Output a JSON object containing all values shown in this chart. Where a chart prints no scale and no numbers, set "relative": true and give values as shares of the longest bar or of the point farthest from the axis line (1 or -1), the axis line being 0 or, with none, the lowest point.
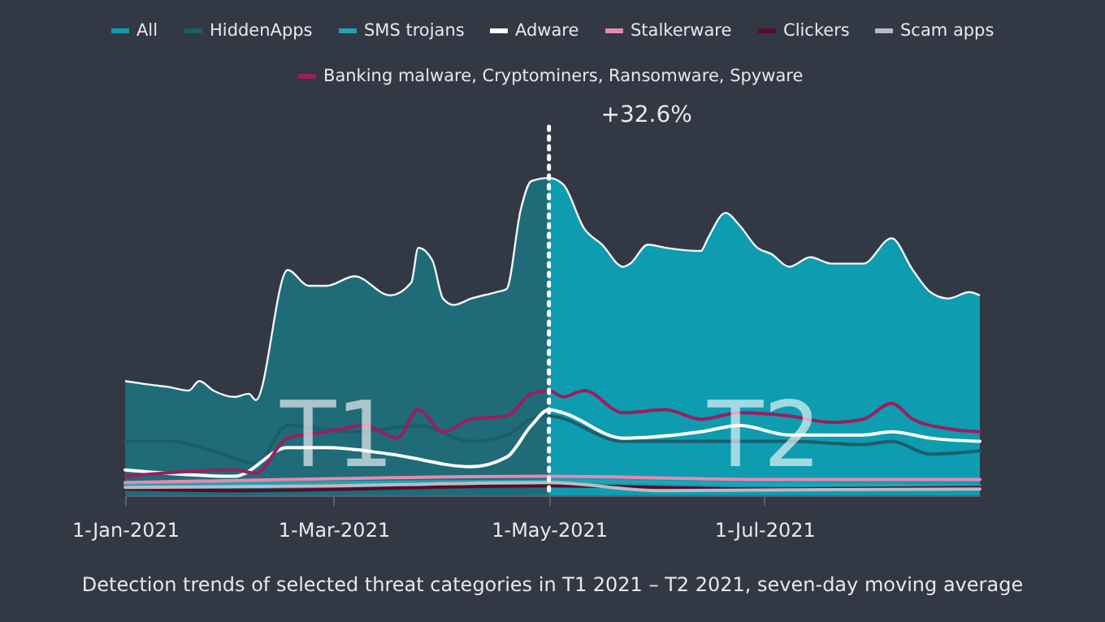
{
  "chart_data": {
    "type": "area",
    "relative": true,
    "xlim": [
      "2021-01-01",
      "2021-08-31"
    ],
    "xticks": [
      {
        "value": "2021-01-01",
        "label": "1-Jan-2021"
      },
      {
        "value": "2021-03-01",
        "label": "1-Mar-2021"
      },
      {
        "value": "2021-05-01",
        "label": "1-May-2021"
      },
      {
        "value": "2021-07-01",
        "label": "1-Jul-2021"
      }
    ],
    "legend": "top",
    "line_style": "solid",
    "series": [
      {
        "name": "All",
        "color": "#0e9cb0",
        "x": [
          "2021-01-01",
          "2021-01-07",
          "2021-01-14",
          "2021-01-19",
          "2021-01-22",
          "2021-01-26",
          "2021-02-01",
          "2021-02-05",
          "2021-02-07",
          "2021-02-16",
          "2021-02-22",
          "2021-02-27",
          "2021-03-07",
          "2021-03-17",
          "2021-03-23",
          "2021-03-25",
          "2021-03-29",
          "2021-04-01",
          "2021-04-04",
          "2021-04-09",
          "2021-04-16",
          "2021-04-19",
          "2021-04-23",
          "2021-04-26",
          "2021-05-01",
          "2021-05-05",
          "2021-05-11",
          "2021-05-16",
          "2021-05-22",
          "2021-05-24",
          "2021-05-29",
          "2021-06-03",
          "2021-06-13",
          "2021-06-15",
          "2021-06-20",
          "2021-06-24",
          "2021-06-29",
          "2021-07-03",
          "2021-07-08",
          "2021-07-14",
          "2021-07-20",
          "2021-07-29",
          "2021-08-06",
          "2021-08-12",
          "2021-08-17",
          "2021-08-22",
          "2021-08-28",
          "2021-08-31"
        ],
        "values": [
          0.36,
          0.35,
          0.34,
          0.33,
          0.36,
          0.33,
          0.31,
          0.32,
          0.3,
          0.71,
          0.66,
          0.66,
          0.69,
          0.63,
          0.67,
          0.78,
          0.74,
          0.62,
          0.6,
          0.62,
          0.64,
          0.65,
          0.9,
          0.99,
          1,
          0.98,
          0.84,
          0.79,
          0.72,
          0.73,
          0.79,
          0.78,
          0.77,
          0.81,
          0.89,
          0.85,
          0.78,
          0.76,
          0.72,
          0.75,
          0.73,
          0.73,
          0.81,
          0.71,
          0.64,
          0.62,
          0.64,
          0.63
        ]
      },
      {
        "color": "#1f6b78",
        "x": [
          "2021-01-01",
          "2021-01-07",
          "2021-01-14",
          "2021-01-19",
          "2021-01-22",
          "2021-01-26",
          "2021-02-01",
          "2021-02-05",
          "2021-02-07",
          "2021-02-16",
          "2021-02-22",
          "2021-02-27",
          "2021-03-07",
          "2021-03-17",
          "2021-03-23",
          "2021-03-25",
          "2021-03-29",
          "2021-04-01",
          "2021-04-04",
          "2021-04-09",
          "2021-04-16",
          "2021-04-19",
          "2021-04-23",
          "2021-04-26",
          "2021-05-01"
        ],
        "values": [
          0.36,
          0.35,
          0.34,
          0.33,
          0.36,
          0.33,
          0.31,
          0.32,
          0.3,
          0.71,
          0.66,
          0.66,
          0.69,
          0.63,
          0.67,
          0.78,
          0.74,
          0.62,
          0.6,
          0.62,
          0.64,
          0.65,
          0.9,
          0.99,
          1
        ]
      },
      {
        "name": "HiddenApps",
        "type": "line",
        "color": "#1b5e6a",
        "x": [
          "2021-01-01",
          "2021-01-14",
          "2021-01-26",
          "2021-02-07",
          "2021-02-16",
          "2021-03-07",
          "2021-03-25",
          "2021-04-09",
          "2021-04-19",
          "2021-04-26",
          "2021-05-01",
          "2021-05-22",
          "2021-06-13",
          "2021-07-08",
          "2021-07-29",
          "2021-08-06",
          "2021-08-17",
          "2021-08-31"
        ],
        "values": [
          0.17,
          0.17,
          0.14,
          0.1,
          0.22,
          0.2,
          0.22,
          0.17,
          0.19,
          0.24,
          0.25,
          0.17,
          0.17,
          0.17,
          0.16,
          0.17,
          0.13,
          0.14
        ]
      },
      {
        "name": "SMS trojans",
        "type": "line",
        "color": "#20a4b4",
        "x": [
          "2021-01-01",
          "2021-03-01",
          "2021-05-01",
          "2021-07-01",
          "2021-08-31"
        ],
        "values": [
          0.035,
          0.04,
          0.045,
          0.035,
          0.03
        ]
      },
      {
        "name": "Adware",
        "type": "line",
        "color": "#ffffff",
        "x": [
          "2021-01-01",
          "2021-02-01",
          "2021-02-16",
          "2021-02-27",
          "2021-03-17",
          "2021-04-09",
          "2021-04-19",
          "2021-04-26",
          "2021-05-01",
          "2021-05-05",
          "2021-05-22",
          "2021-06-13",
          "2021-06-24",
          "2021-07-08",
          "2021-07-29",
          "2021-08-06",
          "2021-08-17",
          "2021-08-31"
        ],
        "values": [
          0.08,
          0.06,
          0.15,
          0.15,
          0.13,
          0.09,
          0.12,
          0.22,
          0.27,
          0.26,
          0.18,
          0.2,
          0.22,
          0.19,
          0.19,
          0.2,
          0.18,
          0.17
        ]
      },
      {
        "name": "Stalkerware",
        "type": "line",
        "color": "#e68ab0",
        "x": [
          "2021-01-01",
          "2021-02-16",
          "2021-05-01",
          "2021-07-01",
          "2021-08-31"
        ],
        "values": [
          0.04,
          0.05,
          0.06,
          0.05,
          0.05
        ]
      },
      {
        "name": "Clickers",
        "type": "line",
        "color": "#5a0a2a",
        "x": [
          "2021-01-01",
          "2021-02-01",
          "2021-05-01",
          "2021-07-01",
          "2021-08-31"
        ],
        "values": [
          0.02,
          0.015,
          0.03,
          0.02,
          0.025
        ]
      },
      {
        "name": "Scam apps",
        "type": "line",
        "color": "#b8bcc4",
        "x": [
          "2021-01-01",
          "2021-03-01",
          "2021-05-01",
          "2021-06-01",
          "2021-08-31"
        ],
        "values": [
          0.025,
          0.03,
          0.04,
          0.015,
          0.02
        ]
      },
      {
        "name": "Banking malware, Cryptominers, Ransomware, Spyware",
        "type": "line",
        "color": "#9b1e5e",
        "x": [
          "2021-01-01",
          "2021-02-01",
          "2021-02-07",
          "2021-02-16",
          "2021-02-27",
          "2021-03-10",
          "2021-03-19",
          "2021-03-25",
          "2021-04-01",
          "2021-04-09",
          "2021-04-19",
          "2021-04-26",
          "2021-05-01",
          "2021-05-05",
          "2021-05-11",
          "2021-05-22",
          "2021-06-03",
          "2021-06-13",
          "2021-06-24",
          "2021-07-08",
          "2021-07-20",
          "2021-07-29",
          "2021-08-06",
          "2021-08-12",
          "2021-08-22",
          "2021-08-31"
        ],
        "values": [
          0.06,
          0.08,
          0.07,
          0.18,
          0.2,
          0.22,
          0.18,
          0.27,
          0.2,
          0.24,
          0.25,
          0.32,
          0.33,
          0.31,
          0.33,
          0.26,
          0.27,
          0.24,
          0.26,
          0.25,
          0.23,
          0.24,
          0.29,
          0.24,
          0.21,
          0.2
        ]
      }
    ],
    "ref_lines": [
      {
        "axis": "x",
        "value": "2021-05-01",
        "color": "#ffffff",
        "line_style": "dotted"
      }
    ],
    "annotations": [
      {
        "text": "T1",
        "x": "2021-03-02",
        "y": 0.03
      },
      {
        "text": "T2",
        "x": "2021-07-01",
        "y": 0.03
      },
      "+32.6%",
      "Detection trends of selected threat categories in T1 2021 – T2 2021, seven-day moving average"
    ]
  }
}
